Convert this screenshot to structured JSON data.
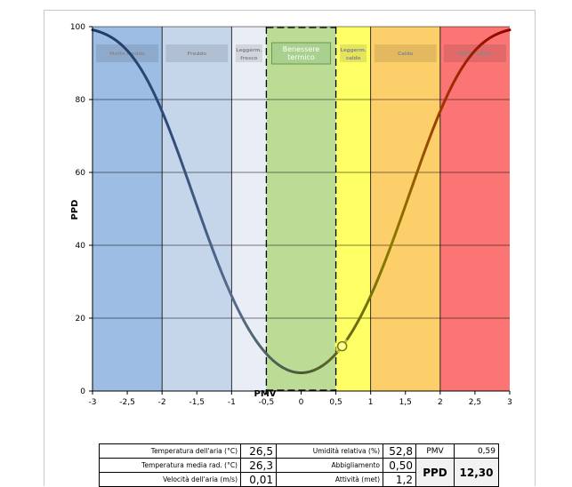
{
  "chart_data": {
    "type": "line",
    "xlabel": "PMV",
    "ylabel": "PPD",
    "xlim": [
      -3,
      3
    ],
    "ylim": [
      0,
      100
    ],
    "x_ticks": [
      "-3",
      "-2,5",
      "-2",
      "-1,5",
      "-1",
      "-0,5",
      "0",
      "0,5",
      "1",
      "1,5",
      "2",
      "2,5",
      "3"
    ],
    "y_ticks": [
      "0",
      "20",
      "40",
      "60",
      "80",
      "100"
    ],
    "grid": "horizontal",
    "curve": {
      "formula": "PPD = 100 - 95*exp(-0.03353*PMV^4 - 0.2179*PMV^2)",
      "x": [
        -3,
        -2.5,
        -2,
        -1.5,
        -1,
        -0.5,
        0,
        0.5,
        1,
        1.5,
        2,
        2.5,
        3
      ],
      "y": [
        99.1,
        93.2,
        76.7,
        51.5,
        26.1,
        10.2,
        5.0,
        10.2,
        26.1,
        51.5,
        76.7,
        93.2,
        99.1
      ]
    },
    "marker": {
      "x": 0.59,
      "y": 12.3
    },
    "zones": [
      {
        "label": "Molto freddo",
        "from": -3,
        "to": -2,
        "color": "#9dbde4"
      },
      {
        "label": "Freddo",
        "from": -2,
        "to": -1,
        "color": "#c5d6ea"
      },
      {
        "label": "Leggerm. fresco",
        "from": -1,
        "to": -0.5,
        "color": "#e9eef6"
      },
      {
        "label": "Benessere termico",
        "from": -0.5,
        "to": 0.5,
        "color": "#bcdc96"
      },
      {
        "label": "Leggerm. caldo",
        "from": 0.5,
        "to": 1,
        "color": "#ffff66"
      },
      {
        "label": "Caldo",
        "from": 1,
        "to": 2,
        "color": "#fdcf6b"
      },
      {
        "label": "Molto caldo",
        "from": 2,
        "to": 3,
        "color": "#fb7575"
      }
    ]
  },
  "table": {
    "temp_aria_label": "Temperatura dell'aria (°C)",
    "temp_aria_value": "26,5",
    "temp_rad_label": "Temperatura media rad. (°C)",
    "temp_rad_value": "26,3",
    "vel_aria_label": "Velocità dell'aria (m/s)",
    "vel_aria_value": "0,01",
    "umidita_label": "Umidità relativa (%)",
    "umidita_value": "52,8",
    "abbigliamento_label": "Abbigliamento",
    "abbigliamento_value": "0,50",
    "attivita_label": "Attività (met)",
    "attivita_value": "1,2",
    "pmv_label": "PMV",
    "pmv_value": "0,59",
    "ppd_label": "PPD",
    "ppd_value": "12,30"
  }
}
